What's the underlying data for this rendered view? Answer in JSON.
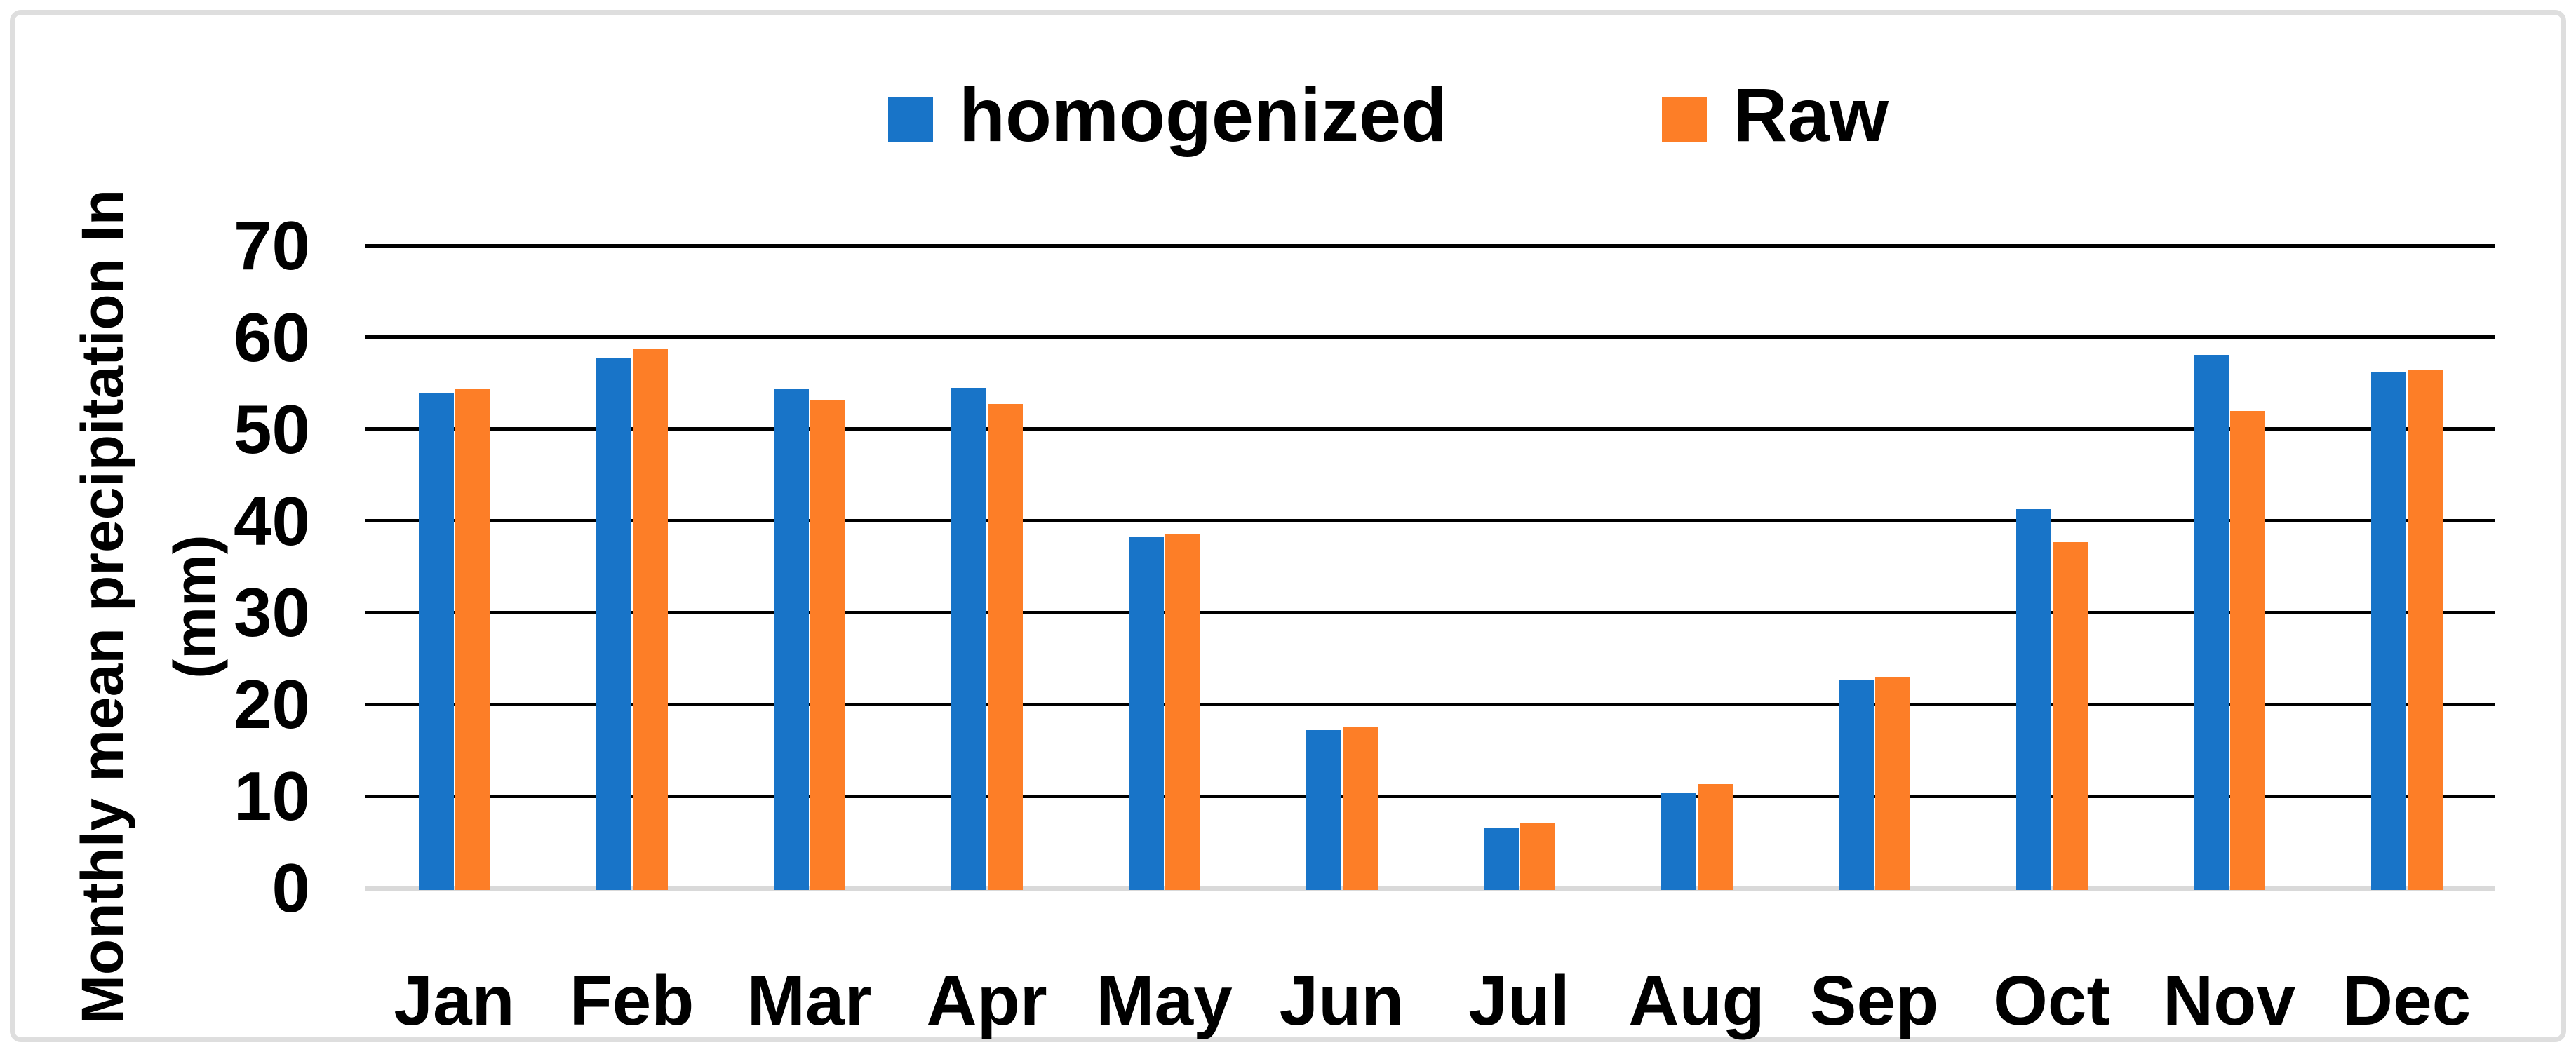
{
  "figure": {
    "background_color": "#ffffff",
    "border_color": "#dedede"
  },
  "legend": {
    "position": "top-center",
    "items": [
      {
        "label": "homogenized",
        "color": "#1874c8"
      },
      {
        "label": "Raw",
        "color": "#fd7e27"
      }
    ]
  },
  "y_axis": {
    "title_line1": "Monthly mean precipitation In",
    "title_line2": "(mm)",
    "tick_labels": [
      "0",
      "10",
      "20",
      "30",
      "40",
      "50",
      "60",
      "70"
    ]
  },
  "chart_data": {
    "type": "bar",
    "title": "",
    "categories": [
      "Jan",
      "Feb",
      "Mar",
      "Apr",
      "May",
      "Jun",
      "Jul",
      "Aug",
      "Sep",
      "Oct",
      "Nov",
      "Dec"
    ],
    "series": [
      {
        "name": "homogenized",
        "color": "#1874c8",
        "values": [
          53.9,
          57.7,
          54.3,
          54.5,
          38.2,
          17.2,
          6.6,
          10.4,
          22.6,
          41.3,
          58.1,
          56.2
        ]
      },
      {
        "name": "Raw",
        "color": "#fd7e27",
        "values": [
          54.3,
          58.7,
          53.2,
          52.7,
          38.5,
          17.6,
          7.1,
          11.3,
          23.0,
          37.7,
          52.0,
          56.4
        ]
      }
    ],
    "xlabel": "",
    "ylabel": "Monthly mean precipitation In (mm)",
    "ylim": [
      0,
      70
    ],
    "ytick_interval": 10,
    "grid": "horizontal-black, zero-line-grey",
    "legend_position": "top"
  }
}
